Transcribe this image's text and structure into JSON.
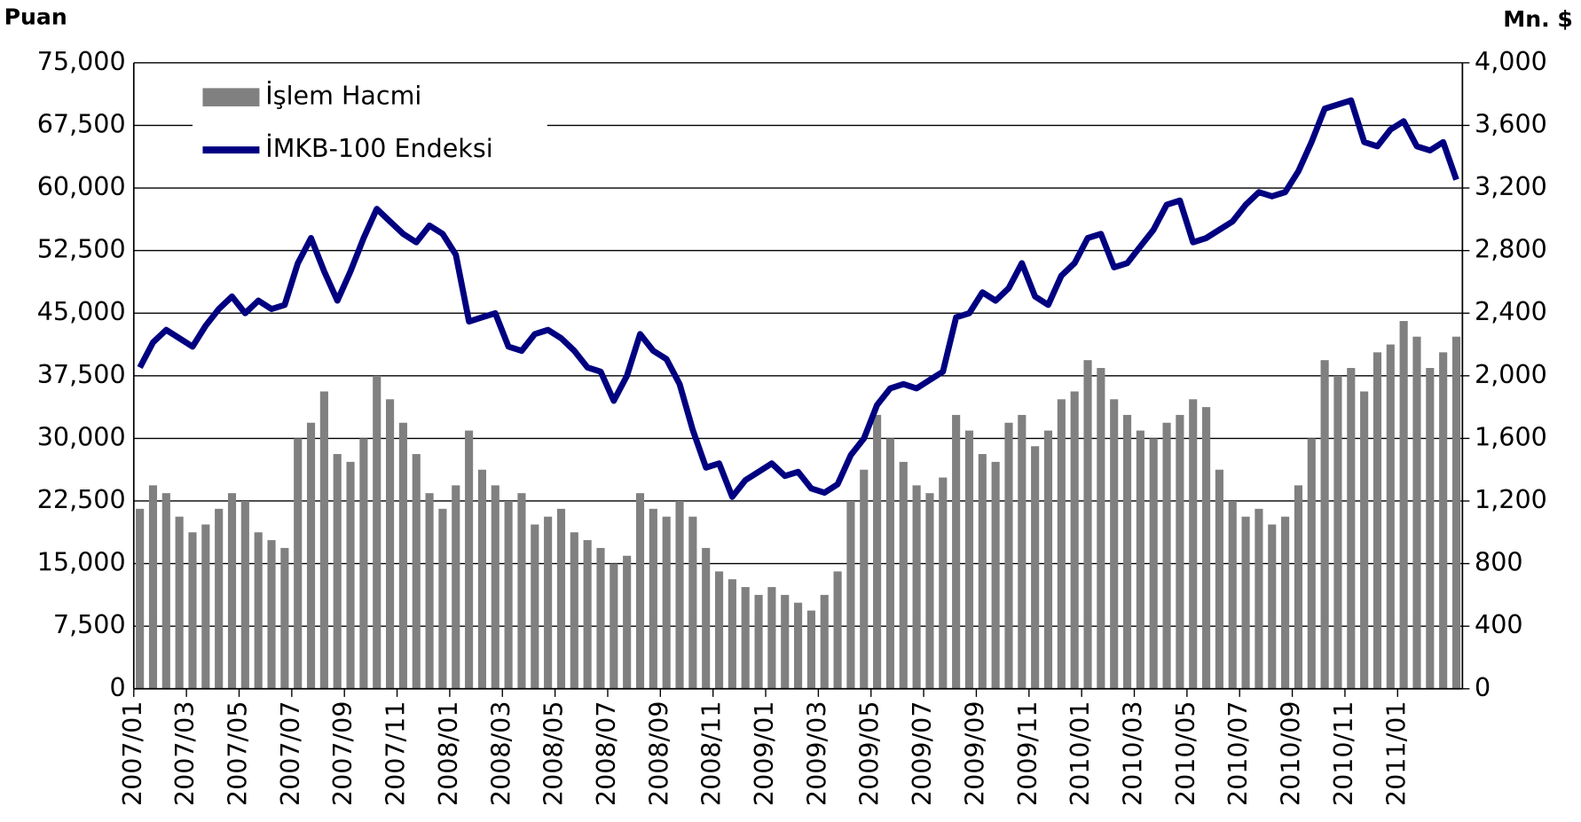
{
  "chart_data": {
    "type": "bar_line",
    "y_label": "Puan",
    "y2_label": "Mn. $",
    "categories": [
      "2007/01",
      null,
      null,
      null,
      "2007/03",
      null,
      null,
      null,
      "2007/05",
      null,
      null,
      null,
      "2007/07",
      null,
      null,
      null,
      "2007/09",
      null,
      null,
      null,
      "2007/11",
      null,
      null,
      null,
      "2008/01",
      null,
      null,
      null,
      "2008/03",
      null,
      null,
      null,
      "2008/05",
      null,
      null,
      null,
      "2008/07",
      null,
      null,
      null,
      "2008/09",
      null,
      null,
      null,
      "2008/11",
      null,
      null,
      null,
      "2009/01",
      null,
      null,
      null,
      "2009/03",
      null,
      null,
      null,
      "2009/05",
      null,
      null,
      null,
      "2009/07",
      null,
      null,
      null,
      "2009/09",
      null,
      null,
      null,
      "2009/11",
      null,
      null,
      null,
      "2010/01",
      null,
      null,
      null,
      "2010/03",
      null,
      null,
      null,
      "2010/05",
      null,
      null,
      null,
      "2010/07",
      null,
      null,
      null,
      "2010/09",
      null,
      null,
      null,
      "2010/11",
      null,
      null,
      null,
      "2011/01",
      null,
      null,
      null,
      null
    ],
    "series": [
      {
        "name": "İşlem Hacmi",
        "type": "bar",
        "axis": "y2",
        "color": "#808080",
        "values": [
          1150,
          1300,
          1250,
          1100,
          1000,
          1050,
          1150,
          1250,
          1200,
          1000,
          950,
          900,
          1600,
          1700,
          1900,
          1500,
          1450,
          1600,
          2000,
          1850,
          1700,
          1500,
          1250,
          1150,
          1300,
          1650,
          1400,
          1300,
          1200,
          1250,
          1050,
          1100,
          1150,
          1000,
          950,
          900,
          800,
          850,
          1250,
          1150,
          1100,
          1200,
          1100,
          900,
          750,
          700,
          650,
          600,
          650,
          600,
          550,
          500,
          600,
          750,
          1200,
          1400,
          1750,
          1600,
          1450,
          1300,
          1250,
          1350,
          1750,
          1650,
          1500,
          1450,
          1700,
          1750,
          1550,
          1650,
          1850,
          1900,
          2100,
          2050,
          1850,
          1750,
          1650,
          1600,
          1700,
          1750,
          1850,
          1800,
          1400,
          1200,
          1100,
          1150,
          1050,
          1100,
          1300,
          1600,
          2100,
          2000,
          2050,
          1900,
          2150,
          2200,
          2350,
          2250,
          2050,
          2150,
          2250
        ]
      },
      {
        "name": "İMKB-100 Endeksi",
        "type": "line",
        "axis": "y",
        "color": "#000080",
        "values": [
          38500,
          41500,
          43000,
          42000,
          41000,
          43500,
          45500,
          47000,
          45000,
          46500,
          45500,
          46000,
          51000,
          54000,
          50000,
          46500,
          50000,
          54000,
          57500,
          56000,
          54500,
          53500,
          55500,
          54500,
          52000,
          44000,
          44500,
          45000,
          41000,
          40500,
          42500,
          43000,
          42000,
          40500,
          38500,
          38000,
          34500,
          37500,
          42500,
          40500,
          39500,
          36500,
          31000,
          26500,
          27000,
          23000,
          25000,
          26000,
          27000,
          25500,
          26000,
          24000,
          23500,
          24500,
          28000,
          30000,
          34000,
          36000,
          36500,
          36000,
          37000,
          38000,
          44500,
          45000,
          47500,
          46500,
          48000,
          51000,
          47000,
          46000,
          49500,
          51000,
          54000,
          54500,
          50500,
          51000,
          53000,
          55000,
          58000,
          58500,
          53500,
          54000,
          55000,
          56000,
          58000,
          59500,
          59000,
          59500,
          62000,
          65500,
          69500,
          70000,
          70500,
          65500,
          65000,
          67000,
          68000,
          65000,
          64500,
          65500,
          61000
        ]
      }
    ],
    "ylim": [
      0,
      75000
    ],
    "yticks": [
      0,
      {
        "value": 7500,
        "label": "7,500"
      },
      {
        "value": 15000,
        "label": "15,000"
      },
      {
        "value": 22500,
        "label": "22,500"
      },
      {
        "value": 30000,
        "label": "30,000"
      },
      {
        "value": 37500,
        "label": "37,500"
      },
      {
        "value": 45000,
        "label": "45,000"
      },
      {
        "value": 52500,
        "label": "52,500"
      },
      {
        "value": 60000,
        "label": "60,000"
      },
      {
        "value": 67500,
        "label": "67,500"
      },
      {
        "value": 75000,
        "label": "75,000"
      }
    ],
    "y2lim": [
      0,
      4000
    ],
    "y2ticks": [
      0,
      400,
      800,
      {
        "value": 1200,
        "label": "1,200"
      },
      {
        "value": 1600,
        "label": "1,600"
      },
      {
        "value": 2000,
        "label": "2,000"
      },
      {
        "value": 2400,
        "label": "2,400"
      },
      {
        "value": 2800,
        "label": "2,800"
      },
      {
        "value": 3200,
        "label": "3,200"
      },
      {
        "value": 3600,
        "label": "3,600"
      },
      {
        "value": 4000,
        "label": "4,000"
      }
    ],
    "grid": true,
    "legend": "upper left"
  }
}
